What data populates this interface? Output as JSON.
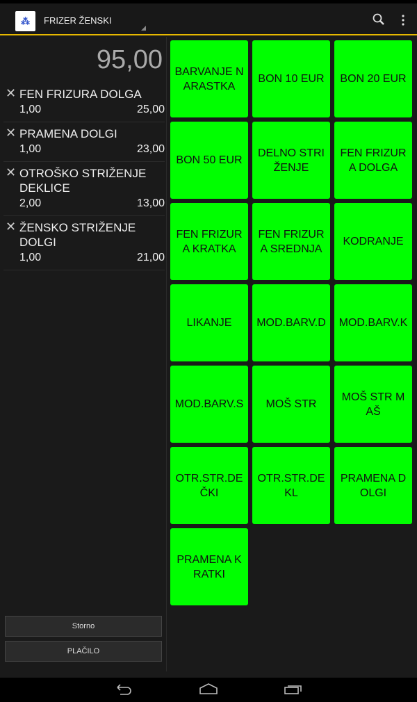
{
  "header": {
    "title": "FRIZER ŽENSKI",
    "logo_icon": "app-logo-icon",
    "search_icon": "search-icon",
    "more_icon": "overflow-menu-icon"
  },
  "order": {
    "total": "95,00",
    "items": [
      {
        "name": "FEN FRIZURA DOLGA",
        "qty": "1,00",
        "price": "25,00"
      },
      {
        "name": "PRAMENA DOLGI",
        "qty": "1,00",
        "price": "23,00"
      },
      {
        "name": "OTROŠKO STRIŽENJE DEKLICE",
        "qty": "2,00",
        "price": "13,00"
      },
      {
        "name": "ŽENSKO STRIŽENJE DOLGI",
        "qty": "1,00",
        "price": "21,00"
      }
    ]
  },
  "buttons": {
    "storno": "Storno",
    "placilo": "PLAČILO"
  },
  "products": [
    "BARVANJE NARASTKA",
    "BON 10 EUR",
    "BON 20 EUR",
    "BON 50 EUR",
    "DELNO STRIŽENJE",
    "FEN FRIZURA DOLGA",
    "FEN FRIZURA KRATKA",
    "FEN FRIZURA SREDNJA",
    "KODRANJE",
    "LIKANJE",
    "MOD.BARV.D",
    "MOD.BARV.K",
    "MOD.BARV.S",
    "MOŠ STR",
    "MOŠ STR MAŠ",
    "OTR.STR.DEČKI",
    "OTR.STR.DEKL",
    "PRAMENA DOLGI",
    "PRAMENA KRATKI"
  ],
  "colors": {
    "tile": "#00ff00",
    "accent": "#e6b800"
  }
}
